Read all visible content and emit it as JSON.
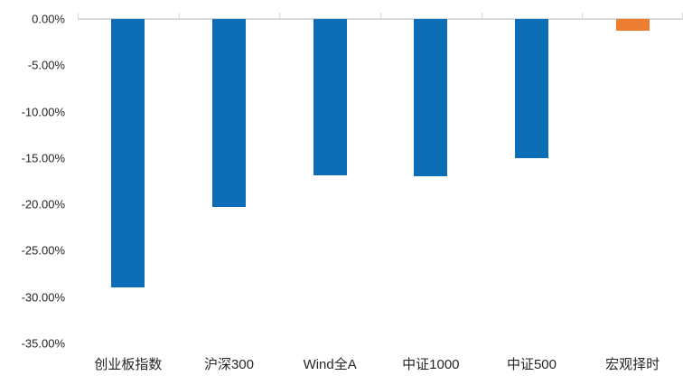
{
  "chart_data": {
    "type": "bar",
    "title": "",
    "xlabel": "",
    "ylabel": "",
    "categories": [
      "创业板指数",
      "沪深300",
      "Wind全A",
      "中证1000",
      "中证500",
      "宏观择时"
    ],
    "values": [
      -29.0,
      -20.3,
      -16.9,
      -17.0,
      -15.0,
      -1.3
    ],
    "unit": "%",
    "bar_colors": [
      "#0D6EB8",
      "#0D6EB8",
      "#0D6EB8",
      "#0D6EB8",
      "#0D6EB8",
      "#ED7D31"
    ],
    "y_axis": {
      "tick_labels": [
        "0.00%",
        "-5.00%",
        "-10.00%",
        "-15.00%",
        "-20.00%",
        "-25.00%",
        "-30.00%",
        "-35.00%"
      ],
      "tick_values": [
        0,
        -5,
        -10,
        -15,
        -20,
        -25,
        -30,
        -35
      ],
      "ylim": [
        -35,
        0
      ]
    },
    "grid": false,
    "legend": "none",
    "colors": {
      "bar_default": "#0D6EB8",
      "bar_highlight": "#ED7D31",
      "axis_line": "#D9D9D9",
      "tick_text": "#262626",
      "category_text": "#262626"
    }
  }
}
